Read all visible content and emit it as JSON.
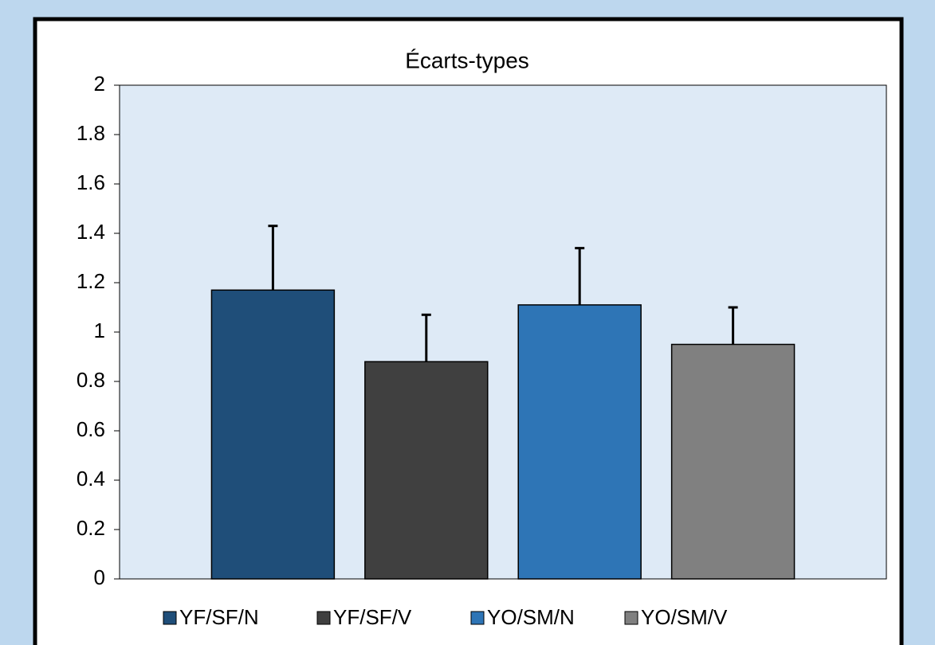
{
  "chart_data": {
    "type": "bar",
    "title": "Écarts-types",
    "categories": [
      null
    ],
    "series": [
      {
        "name": "YF/SF/N",
        "color": "#1f4e79",
        "values": [
          1.17
        ],
        "errors": [
          0.26
        ]
      },
      {
        "name": "YF/SF/V",
        "color": "#404040",
        "values": [
          0.88
        ],
        "errors": [
          0.19
        ]
      },
      {
        "name": "YO/SM/N",
        "color": "#2e75b6",
        "values": [
          1.11
        ],
        "errors": [
          0.23
        ]
      },
      {
        "name": "YO/SM/V",
        "color": "#808080",
        "values": [
          0.95
        ],
        "errors": [
          0.15
        ]
      }
    ],
    "ylim": [
      0,
      2
    ],
    "yticks": [
      0,
      0.2,
      0.4,
      0.6,
      0.8,
      1,
      1.2,
      1.4,
      1.6,
      1.8,
      2
    ],
    "grid": false,
    "legend": "bottom"
  }
}
